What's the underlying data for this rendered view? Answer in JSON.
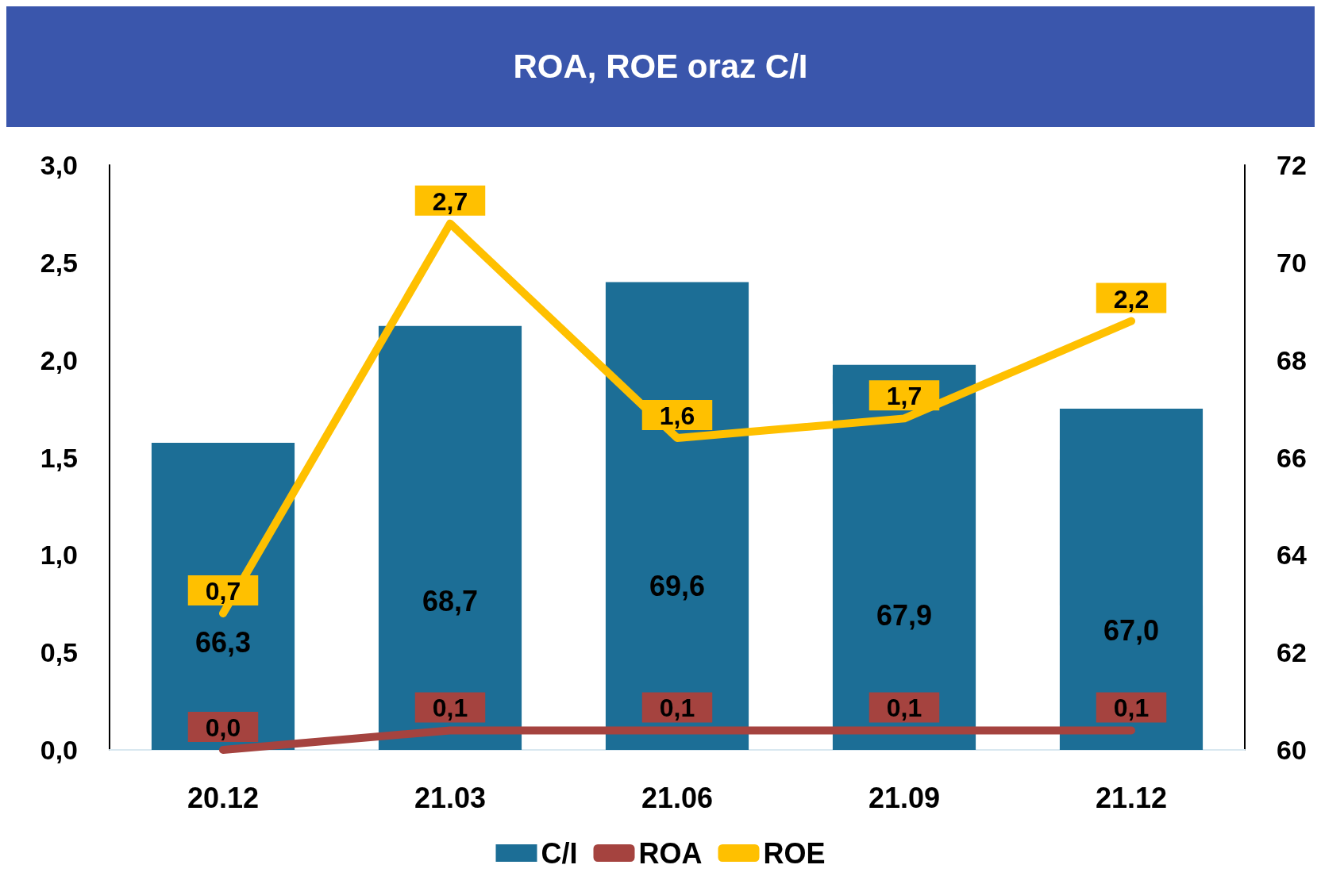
{
  "chart_data": {
    "type": "bar",
    "title": "ROA, ROE oraz C/I",
    "categories": [
      "20.12",
      "21.03",
      "21.06",
      "21.09",
      "21.12"
    ],
    "series": [
      {
        "name": "C/I",
        "axis": "y2",
        "color": "#1c6e96",
        "values": [
          66.3,
          68.7,
          69.6,
          67.9,
          67.0
        ],
        "value_labels": [
          "66,3",
          "68,7",
          "69,6",
          "67,9",
          "67,0"
        ]
      },
      {
        "name": "ROA",
        "type": "line",
        "color": "#a5433f",
        "values": [
          0.0,
          0.1,
          0.1,
          0.1,
          0.1
        ],
        "value_labels": [
          "0,0",
          "0,1",
          "0,1",
          "0,1",
          "0,1"
        ]
      },
      {
        "name": "ROE",
        "type": "line",
        "color": "#ffc000",
        "values": [
          0.7,
          2.7,
          1.6,
          1.7,
          2.2
        ],
        "value_labels": [
          "0,7",
          "2,7",
          "1,6",
          "1,7",
          "2,2"
        ]
      }
    ],
    "ylim": [
      0,
      3
    ],
    "yticks": [
      {
        "value": 0,
        "label": "0,0"
      },
      {
        "value": 0.5,
        "label": "0,5"
      },
      {
        "value": 1,
        "label": "1,0"
      },
      {
        "value": 1.5,
        "label": "1,5"
      },
      {
        "value": 2,
        "label": "2,0"
      },
      {
        "value": 2.5,
        "label": "2,5"
      },
      {
        "value": 3,
        "label": "3,0"
      }
    ],
    "y2lim": [
      60,
      72
    ],
    "y2ticks": [
      60,
      62,
      64,
      66,
      68,
      70,
      72
    ],
    "grid": false,
    "legend": "bottom"
  }
}
